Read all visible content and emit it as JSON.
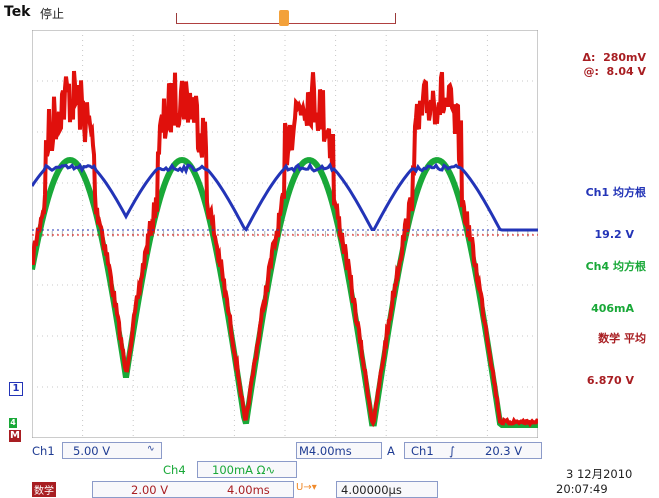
{
  "header": {
    "brand": "Tek",
    "status": "停止"
  },
  "cursor": {
    "delta_label": "Δ:",
    "delta_value": "280mV",
    "at_label": "@:",
    "at_value": "8.04 V"
  },
  "measurements": [
    {
      "name": "Ch1 均方根",
      "value": "19.2 V",
      "color": "#2334b7"
    },
    {
      "name": "Ch4 均方根",
      "value": "406mA",
      "color": "#19a838"
    },
    {
      "name": "数学 平均",
      "value": "6.870 V",
      "color": "#a81e22"
    }
  ],
  "markers": {
    "ch1": "1",
    "ch4": "4",
    "math": "M",
    "trigger": "T"
  },
  "bottom": {
    "ch1_label": "Ch1",
    "ch1_scale": "5.00 V",
    "ch1_coupling": "∿",
    "timebase": "M4.00ms",
    "trig_mode": "A",
    "trig_src": "Ch1",
    "trig_slope": "∫",
    "trig_level": "20.3 V",
    "ch4_label": "Ch4",
    "ch4_scale": "100mA Ω∿",
    "math_label": "数学",
    "math_scale": "2.00 V",
    "math_time": "4.00ms",
    "trig_pos_icon": "U→▾",
    "trig_pos": "4.00000μs",
    "date": "3 12月2010",
    "time": "20:07:49"
  },
  "colors": {
    "ch1": "#2334b7",
    "ch4": "#19a838",
    "math": "#e0100c",
    "grid": "#c8c8c8"
  },
  "chart_data": {
    "type": "line",
    "x_unit": "ms",
    "x_range": [
      0,
      40
    ],
    "series": [
      {
        "name": "Ch1",
        "color": "#2334b7",
        "kind": "rectified_sine_clipped",
        "period_ms": 8.33,
        "peaks": 4
      },
      {
        "name": "Ch4",
        "color": "#19a838",
        "kind": "rectified_sine",
        "period_ms": 8.33,
        "peaks": 4
      },
      {
        "name": "Math",
        "color": "#e0100c",
        "kind": "rectified_sine_noisy",
        "period_ms": 8.33,
        "peaks": 4
      }
    ]
  }
}
